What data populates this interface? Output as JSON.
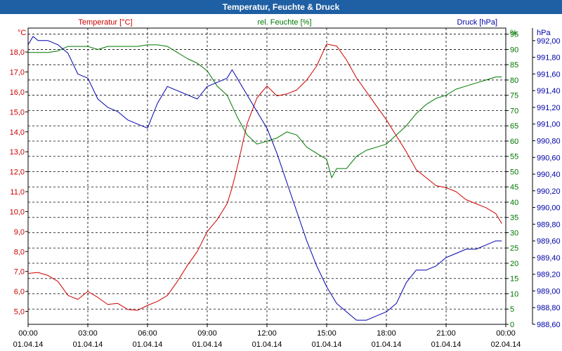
{
  "window": {
    "title": "Temperatur, Feuchte & Druck"
  },
  "colors": {
    "temperature": "#cc0000",
    "humidity": "#007700",
    "pressure": "#0000aa",
    "axis": "#000000",
    "grid": "#000000"
  },
  "chart_data": {
    "type": "line",
    "title": "Temperatur, Feuchte & Druck",
    "x": [
      "00:00",
      "03:00",
      "06:00",
      "09:00",
      "12:00",
      "15:00",
      "18:00",
      "21:00",
      "00:00"
    ],
    "x_dates": [
      "01.04.14",
      "01.04.14",
      "01.04.14",
      "01.04.14",
      "01.04.14",
      "01.04.14",
      "01.04.14",
      "01.04.14",
      "02.04.14"
    ],
    "xlim_hours": [
      0,
      24
    ],
    "grid": true,
    "axes": {
      "temperature": {
        "label": "Temperatur [°C]",
        "unit": "°C",
        "ylim": [
          4.35,
          19.2
        ],
        "ticks": [
          "5,0",
          "6,0",
          "7,0",
          "8,0",
          "9,0",
          "10,0",
          "11,0",
          "12,0",
          "13,0",
          "14,0",
          "15,0",
          "16,0",
          "17,0",
          "18,0"
        ],
        "tick_values": [
          5,
          6,
          7,
          8,
          9,
          10,
          11,
          12,
          13,
          14,
          15,
          16,
          17,
          18
        ]
      },
      "humidity": {
        "label": "rel. Feuchte [%]",
        "unit": "%",
        "ylim": [
          0,
          97
        ],
        "ticks": [
          "0",
          "5",
          "10",
          "15",
          "20",
          "25",
          "30",
          "35",
          "40",
          "45",
          "50",
          "55",
          "60",
          "65",
          "70",
          "75",
          "80",
          "85",
          "90",
          "95"
        ],
        "tick_values": [
          0,
          5,
          10,
          15,
          20,
          25,
          30,
          35,
          40,
          45,
          50,
          55,
          60,
          65,
          70,
          75,
          80,
          85,
          90,
          95
        ]
      },
      "pressure": {
        "label": "Druck [hPa]",
        "unit": "hPa",
        "ylim": [
          988.6,
          992.15
        ],
        "ticks": [
          "988,60",
          "988,80",
          "989,00",
          "989,20",
          "989,40",
          "989,60",
          "989,80",
          "990,00",
          "990,20",
          "990,40",
          "990,60",
          "990,80",
          "991,00",
          "991,20",
          "991,40",
          "991,60",
          "991,80",
          "992,00"
        ],
        "tick_values": [
          988.6,
          988.8,
          989.0,
          989.2,
          989.4,
          989.6,
          989.8,
          990.0,
          990.2,
          990.4,
          990.6,
          990.8,
          991.0,
          991.2,
          991.4,
          991.6,
          991.8,
          992.0
        ]
      }
    },
    "series": [
      {
        "name": "Temperatur [°C]",
        "axis": "temperature",
        "x": [
          0,
          0.5,
          1,
          1.5,
          2,
          2.5,
          3,
          3.5,
          4,
          4.5,
          5,
          5.5,
          6,
          6.5,
          7,
          7.5,
          8,
          8.5,
          9,
          9.5,
          10,
          10.25,
          10.5,
          10.75,
          11,
          11.5,
          12,
          12.5,
          13,
          13.5,
          14,
          14.5,
          15,
          15.5,
          16,
          16.5,
          17,
          17.5,
          18,
          18.5,
          19,
          19.5,
          20,
          20.5,
          21,
          21.5,
          22,
          22.5,
          23,
          23.5,
          23.8
        ],
        "values": [
          6.9,
          6.95,
          6.8,
          6.5,
          5.8,
          5.6,
          6.0,
          5.7,
          5.35,
          5.4,
          5.1,
          5.05,
          5.3,
          5.5,
          5.8,
          6.5,
          7.3,
          8.0,
          9.0,
          9.6,
          10.4,
          11.2,
          12.2,
          13.3,
          14.4,
          15.7,
          16.3,
          15.8,
          15.9,
          16.1,
          16.6,
          17.3,
          18.4,
          18.3,
          17.6,
          16.7,
          16.0,
          15.3,
          14.6,
          13.8,
          13.0,
          12.1,
          11.7,
          11.3,
          11.2,
          11.0,
          10.6,
          10.4,
          10.2,
          9.9,
          9.4
        ]
      },
      {
        "name": "rel. Feuchte [%]",
        "axis": "humidity",
        "x": [
          0,
          0.5,
          1,
          1.5,
          2,
          2.5,
          3,
          3.5,
          4,
          4.5,
          5,
          5.5,
          6,
          6.5,
          7,
          7.5,
          8,
          8.5,
          9,
          9.5,
          10,
          10.5,
          11,
          11.5,
          12,
          12.5,
          13,
          13.5,
          14,
          14.5,
          15,
          15.25,
          15.5,
          16,
          16.5,
          17,
          17.5,
          18,
          18.5,
          19,
          19.5,
          20,
          20.5,
          21,
          21.5,
          22,
          22.5,
          23,
          23.5,
          23.8
        ],
        "values": [
          89,
          89,
          89,
          89.5,
          91,
          91,
          91,
          90,
          91,
          91,
          91,
          91,
          91.5,
          91.5,
          91,
          89,
          87,
          85.5,
          83,
          78,
          75,
          68,
          62,
          59,
          60,
          61,
          63,
          62,
          58,
          56,
          54,
          48,
          51,
          51,
          55,
          57,
          58,
          59,
          62,
          65,
          69,
          72,
          74,
          75,
          77,
          78,
          79,
          80,
          81,
          81
        ]
      },
      {
        "name": "Druck [hPa]",
        "axis": "pressure",
        "x": [
          0,
          0.25,
          0.5,
          1,
          1.5,
          2,
          2.5,
          3,
          3.5,
          4,
          4.5,
          5,
          5.5,
          6,
          6.5,
          7,
          7.5,
          8,
          8.5,
          9,
          9.5,
          10,
          10.25,
          10.5,
          10.75,
          11,
          11.5,
          12,
          12.5,
          13,
          13.5,
          14,
          14.5,
          15,
          15.5,
          16,
          16.5,
          17,
          17.5,
          18,
          18.5,
          19,
          19.5,
          20,
          20.5,
          21,
          21.5,
          22,
          22.5,
          23,
          23.5,
          23.8
        ],
        "values": [
          991.95,
          992.05,
          992.0,
          992.0,
          991.95,
          991.85,
          991.6,
          991.55,
          991.3,
          991.2,
          991.15,
          991.05,
          991.0,
          990.95,
          991.25,
          991.45,
          991.4,
          991.35,
          991.3,
          991.45,
          991.5,
          991.55,
          991.65,
          991.55,
          991.45,
          991.35,
          991.15,
          990.95,
          990.65,
          990.3,
          989.95,
          989.6,
          989.3,
          989.05,
          988.85,
          988.75,
          988.65,
          988.65,
          988.7,
          988.75,
          988.85,
          989.1,
          989.25,
          989.25,
          989.3,
          989.4,
          989.45,
          989.5,
          989.5,
          989.55,
          989.6,
          989.6
        ]
      }
    ]
  }
}
